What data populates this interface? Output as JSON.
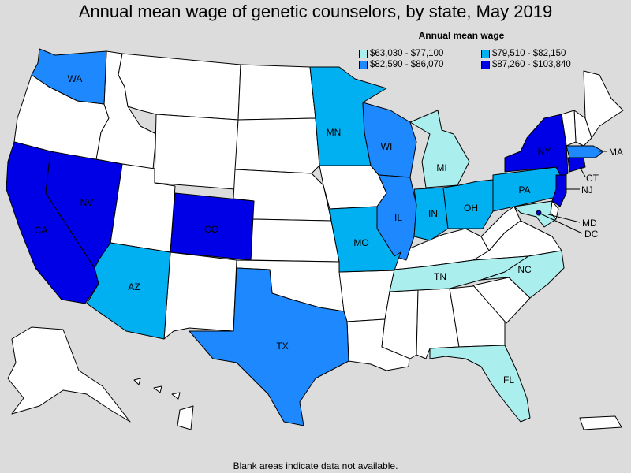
{
  "title": "Annual mean wage of genetic counselors, by state, May 2019",
  "legend": {
    "title": "Annual mean wage",
    "items": [
      {
        "label": "$63,030 - $77,100",
        "color": "#aaeeee"
      },
      {
        "label": "$79,510 - $82,150",
        "color": "#00b0f0"
      },
      {
        "label": "$82,590 - $86,070",
        "color": "#1e88ff"
      },
      {
        "label": "$87,260 - $103,840",
        "color": "#0000e6"
      }
    ]
  },
  "footnote": "Blank areas indicate data not available.",
  "colors": {
    "no_data": "#ffffff",
    "tier1": "#aaeeee",
    "tier2": "#00b0f0",
    "tier3": "#1e88ff",
    "tier4": "#0000e6",
    "background": "#dcdcdc"
  },
  "states": {
    "WA": {
      "label": "WA",
      "tier": 3
    },
    "CA": {
      "label": "CA",
      "tier": 4
    },
    "NV": {
      "label": "NV",
      "tier": 4
    },
    "AZ": {
      "label": "AZ",
      "tier": 2
    },
    "CO": {
      "label": "CO",
      "tier": 4
    },
    "TX": {
      "label": "TX",
      "tier": 3
    },
    "MN": {
      "label": "MN",
      "tier": 2
    },
    "WI": {
      "label": "WI",
      "tier": 3
    },
    "MI": {
      "label": "MI",
      "tier": 1
    },
    "IL": {
      "label": "IL",
      "tier": 3
    },
    "IN": {
      "label": "IN",
      "tier": 2
    },
    "OH": {
      "label": "OH",
      "tier": 2
    },
    "MO": {
      "label": "MO",
      "tier": 2
    },
    "TN": {
      "label": "TN",
      "tier": 1
    },
    "NC": {
      "label": "NC",
      "tier": 1
    },
    "PA": {
      "label": "PA",
      "tier": 2
    },
    "NY": {
      "label": "NY",
      "tier": 4
    },
    "FL": {
      "label": "FL",
      "tier": 1
    },
    "MA": {
      "label": "MA",
      "tier": 3
    },
    "CT": {
      "label": "CT",
      "tier": 4
    },
    "NJ": {
      "label": "NJ",
      "tier": 4
    },
    "MD": {
      "label": "MD",
      "tier": 1
    },
    "DC": {
      "label": "DC",
      "tier": 4
    }
  }
}
